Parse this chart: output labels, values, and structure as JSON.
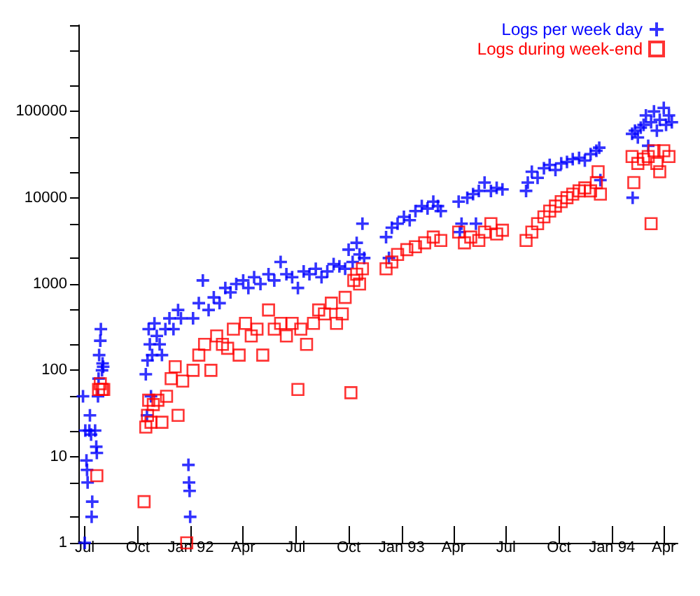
{
  "chart_data": {
    "type": "scatter",
    "xlim": [
      "1991-06-20",
      "1994-04-25"
    ],
    "xticks": [
      {
        "value": "1991-07-01",
        "label": "Jul"
      },
      {
        "value": "1991-10-01",
        "label": "Oct"
      },
      {
        "value": "1992-01-01",
        "label": "Jan 92"
      },
      {
        "value": "1992-04-01",
        "label": "Apr"
      },
      {
        "value": "1992-07-01",
        "label": "Jul"
      },
      {
        "value": "1992-10-01",
        "label": "Oct"
      },
      {
        "value": "1993-01-01",
        "label": "Jan 93"
      },
      {
        "value": "1993-04-01",
        "label": "Apr"
      },
      {
        "value": "1993-07-01",
        "label": "Jul"
      },
      {
        "value": "1993-10-01",
        "label": "Oct"
      },
      {
        "value": "1994-01-01",
        "label": "Jan 94"
      },
      {
        "value": "1994-04-01",
        "label": "Apr"
      }
    ],
    "ylim": [
      1,
      1000000
    ],
    "log": "y",
    "yticks": [
      1,
      {
        "value": 2,
        "label": null
      },
      {
        "value": 5,
        "label": null
      },
      10,
      {
        "value": 20,
        "label": null
      },
      {
        "value": 50,
        "label": null
      },
      100,
      {
        "value": 200,
        "label": null
      },
      {
        "value": 500,
        "label": null
      },
      1000,
      {
        "value": 2000,
        "label": null
      },
      {
        "value": 5000,
        "label": null
      },
      10000,
      {
        "value": 20000,
        "label": null
      },
      {
        "value": 50000,
        "label": null
      },
      100000,
      {
        "value": 200000,
        "label": null
      },
      {
        "value": 500000,
        "label": null
      },
      {
        "value": 1000000,
        "label": null
      }
    ],
    "grid": false,
    "legend": "top right",
    "series": [
      {
        "name": "Logs per week day",
        "color": "#0000ff",
        "marker": "cross",
        "x": [
          "1991-07-01",
          "1991-06-28",
          "1991-07-02",
          "1991-07-04",
          "1991-07-05",
          "1991-07-06",
          "1991-07-09",
          "1991-07-10",
          "1991-07-12",
          "1991-07-14",
          "1991-07-13",
          "1991-07-19",
          "1991-07-21",
          "1991-07-22",
          "1991-07-24",
          "1991-07-25",
          "1991-07-26",
          "1991-07-28",
          "1991-07-29",
          "1991-07-31",
          "1991-08-01",
          "1991-08-02",
          "1991-10-15",
          "1991-10-17",
          "1991-10-18",
          "1991-10-20",
          "1991-10-22",
          "1991-10-24",
          "1991-10-26",
          "1991-10-30",
          "1991-11-03",
          "1991-11-08",
          "1991-11-12",
          "1991-11-18",
          "1991-11-25",
          "1991-12-02",
          "1991-12-10",
          "1991-12-15",
          "1991-12-28",
          "1991-12-29",
          "1991-12-30",
          "1991-12-31",
          "1992-01-05",
          "1992-01-15",
          "1992-01-22",
          "1992-02-01",
          "1992-02-10",
          "1992-02-20",
          "1992-03-01",
          "1992-03-10",
          "1992-03-20",
          "1992-04-01",
          "1992-04-10",
          "1992-04-20",
          "1992-05-01",
          "1992-05-15",
          "1992-05-25",
          "1992-06-05",
          "1992-06-15",
          "1992-06-25",
          "1992-07-05",
          "1992-07-15",
          "1992-07-25",
          "1992-08-05",
          "1992-08-15",
          "1992-08-25",
          "1992-09-05",
          "1992-09-15",
          "1992-09-25",
          "1992-10-01",
          "1992-10-08",
          "1992-10-15",
          "1992-10-20",
          "1992-10-25",
          "1992-10-28",
          "1992-12-05",
          "1992-12-10",
          "1992-12-15",
          "1992-12-25",
          "1993-01-05",
          "1993-01-15",
          "1993-01-25",
          "1993-02-05",
          "1993-02-15",
          "1993-02-25",
          "1993-03-05",
          "1993-03-10",
          "1993-04-10",
          "1993-04-12",
          "1993-04-15",
          "1993-04-25",
          "1993-05-05",
          "1993-05-10",
          "1993-05-15",
          "1993-05-25",
          "1993-06-05",
          "1993-06-15",
          "1993-06-25",
          "1993-08-05",
          "1993-08-08",
          "1993-08-15",
          "1993-08-25",
          "1993-09-05",
          "1993-09-15",
          "1993-09-25",
          "1993-10-05",
          "1993-10-15",
          "1993-10-25",
          "1993-11-05",
          "1993-11-15",
          "1993-11-25",
          "1993-12-05",
          "1993-12-10",
          "1993-12-12",
          "1994-02-05",
          "1994-02-06",
          "1994-02-10",
          "1994-02-15",
          "1994-02-20",
          "1994-02-25",
          "1994-03-01",
          "1994-03-05",
          "1994-03-10",
          "1994-03-15",
          "1994-03-20",
          "1994-03-25",
          "1994-04-01",
          "1994-04-05",
          "1994-04-10",
          "1994-04-15"
        ],
        "values": [
          1,
          50,
          20,
          9,
          7,
          5,
          20,
          30,
          18,
          3,
          2,
          20,
          13,
          11,
          50,
          80,
          150,
          220,
          300,
          100,
          120,
          110,
          90,
          30,
          130,
          300,
          200,
          50,
          150,
          350,
          250,
          200,
          150,
          300,
          400,
          300,
          500,
          400,
          8,
          5,
          4,
          2,
          400,
          600,
          1100,
          500,
          700,
          600,
          900,
          800,
          1000,
          1100,
          900,
          1200,
          1000,
          1300,
          1100,
          1800,
          1300,
          1200,
          900,
          1400,
          1300,
          1500,
          1200,
          1400,
          1700,
          1600,
          1500,
          2500,
          1800,
          3000,
          2200,
          5000,
          2000,
          3500,
          2000,
          4500,
          5000,
          6000,
          5500,
          7000,
          8000,
          7500,
          9000,
          8000,
          7000,
          9000,
          4000,
          5000,
          10000,
          11000,
          5000,
          12000,
          15000,
          12000,
          13000,
          12500,
          12000,
          15000,
          20000,
          17000,
          22000,
          24000,
          21000,
          25000,
          26000,
          28000,
          29000,
          27000,
          32000,
          35000,
          38000,
          16000,
          55000,
          10000,
          60000,
          50000,
          65000,
          70000,
          90000,
          40000,
          75000,
          100000,
          60000,
          80000,
          110000,
          70000,
          90000,
          75000
        ]
      },
      {
        "name": "Logs during week-end",
        "color": "#ff0000",
        "marker": "square",
        "x": [
          "1991-07-22",
          "1991-07-25",
          "1991-07-28",
          "1991-07-31",
          "1991-08-03",
          "1991-10-12",
          "1991-10-15",
          "1991-10-18",
          "1991-10-20",
          "1991-10-24",
          "1991-10-28",
          "1991-11-05",
          "1991-11-12",
          "1991-11-20",
          "1991-11-28",
          "1991-12-05",
          "1991-12-10",
          "1991-12-18",
          "1991-12-25",
          "1992-01-05",
          "1992-01-15",
          "1992-01-25",
          "1992-02-05",
          "1992-02-15",
          "1992-02-25",
          "1992-03-05",
          "1992-03-15",
          "1992-03-25",
          "1992-04-05",
          "1992-04-15",
          "1992-04-25",
          "1992-05-05",
          "1992-05-15",
          "1992-05-25",
          "1992-06-05",
          "1992-06-15",
          "1992-06-25",
          "1992-07-05",
          "1992-07-10",
          "1992-07-20",
          "1992-08-01",
          "1992-08-10",
          "1992-08-20",
          "1992-09-01",
          "1992-09-10",
          "1992-09-20",
          "1992-09-25",
          "1992-10-05",
          "1992-10-10",
          "1992-10-15",
          "1992-10-20",
          "1992-10-25",
          "1992-12-05",
          "1992-12-15",
          "1992-12-25",
          "1993-01-10",
          "1993-01-25",
          "1993-02-10",
          "1993-02-25",
          "1993-03-10",
          "1993-04-10",
          "1993-04-20",
          "1993-05-01",
          "1993-05-15",
          "1993-05-25",
          "1993-06-05",
          "1993-06-15",
          "1993-06-25",
          "1993-08-05",
          "1993-08-15",
          "1993-08-25",
          "1993-09-05",
          "1993-09-15",
          "1993-09-25",
          "1993-10-05",
          "1993-10-15",
          "1993-10-25",
          "1993-11-05",
          "1993-11-15",
          "1993-11-25",
          "1993-12-05",
          "1993-12-08",
          "1993-12-12",
          "1994-02-05",
          "1994-02-08",
          "1994-02-15",
          "1994-02-25",
          "1994-03-05",
          "1994-03-10",
          "1994-03-15",
          "1994-03-20",
          "1994-03-25",
          "1994-04-01",
          "1994-04-10"
        ],
        "values": [
          6,
          60,
          70,
          60,
          60,
          3,
          22,
          30,
          45,
          25,
          40,
          45,
          25,
          50,
          80,
          110,
          30,
          75,
          1,
          100,
          150,
          200,
          100,
          250,
          200,
          180,
          300,
          150,
          350,
          250,
          300,
          150,
          500,
          300,
          350,
          250,
          350,
          60,
          300,
          200,
          350,
          500,
          450,
          600,
          350,
          450,
          700,
          55,
          1100,
          1300,
          1000,
          1500,
          1500,
          1800,
          2200,
          2500,
          2700,
          3000,
          3500,
          3200,
          4000,
          3000,
          3500,
          3200,
          4000,
          5000,
          3800,
          4200,
          3200,
          4000,
          5000,
          6000,
          7000,
          8000,
          9000,
          10000,
          11000,
          12000,
          13000,
          12000,
          15000,
          20000,
          11000,
          30000,
          15000,
          25000,
          28000,
          30000,
          5000,
          35000,
          25000,
          20000,
          35000,
          30000
        ]
      }
    ]
  }
}
